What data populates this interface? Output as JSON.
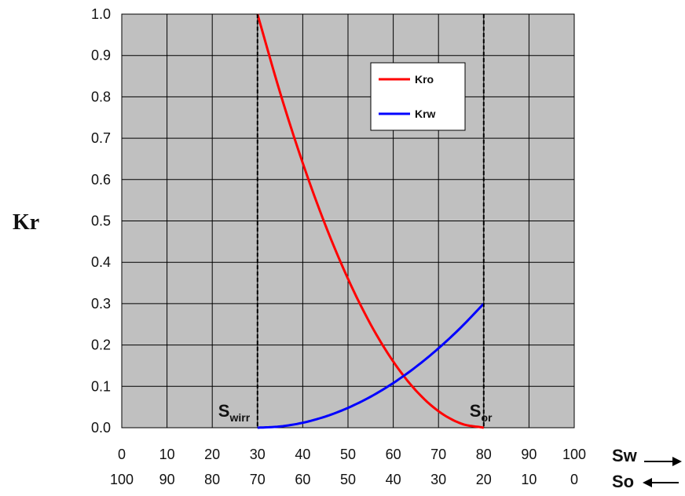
{
  "chart_data": {
    "type": "line",
    "ylabel": "Kr",
    "ylim": [
      0,
      1
    ],
    "y_ticks": [
      "0.0",
      "0.1",
      "0.2",
      "0.3",
      "0.4",
      "0.5",
      "0.6",
      "0.7",
      "0.8",
      "0.9",
      "1.0"
    ],
    "xlim": [
      0,
      100
    ],
    "x_ticks_sw": [
      "0",
      "10",
      "20",
      "30",
      "40",
      "50",
      "60",
      "70",
      "80",
      "90",
      "100"
    ],
    "x_ticks_so": [
      "100",
      "90",
      "80",
      "70",
      "60",
      "50",
      "40",
      "30",
      "20",
      "10",
      "0"
    ],
    "x_axis_names": [
      "Sw",
      "So"
    ],
    "grid": true,
    "legend_position": "top-right",
    "series": [
      {
        "name": "Kro",
        "color": "#ff0000",
        "x": [
          30,
          35,
          40,
          45,
          50,
          55,
          60,
          65,
          70,
          75,
          80
        ],
        "y": [
          1.0,
          0.81,
          0.64,
          0.49,
          0.36,
          0.25,
          0.16,
          0.09,
          0.04,
          0.01,
          0.0
        ]
      },
      {
        "name": "Krw",
        "color": "#0000ff",
        "x": [
          30,
          35,
          40,
          45,
          50,
          55,
          60,
          65,
          70,
          75,
          80
        ],
        "y": [
          0.0,
          0.003,
          0.012,
          0.027,
          0.048,
          0.075,
          0.108,
          0.147,
          0.192,
          0.243,
          0.3
        ]
      }
    ],
    "markers": [
      {
        "main": "S",
        "sub": "wirr",
        "x": 30
      },
      {
        "main": "S",
        "sub": "or",
        "x": 80
      }
    ]
  }
}
